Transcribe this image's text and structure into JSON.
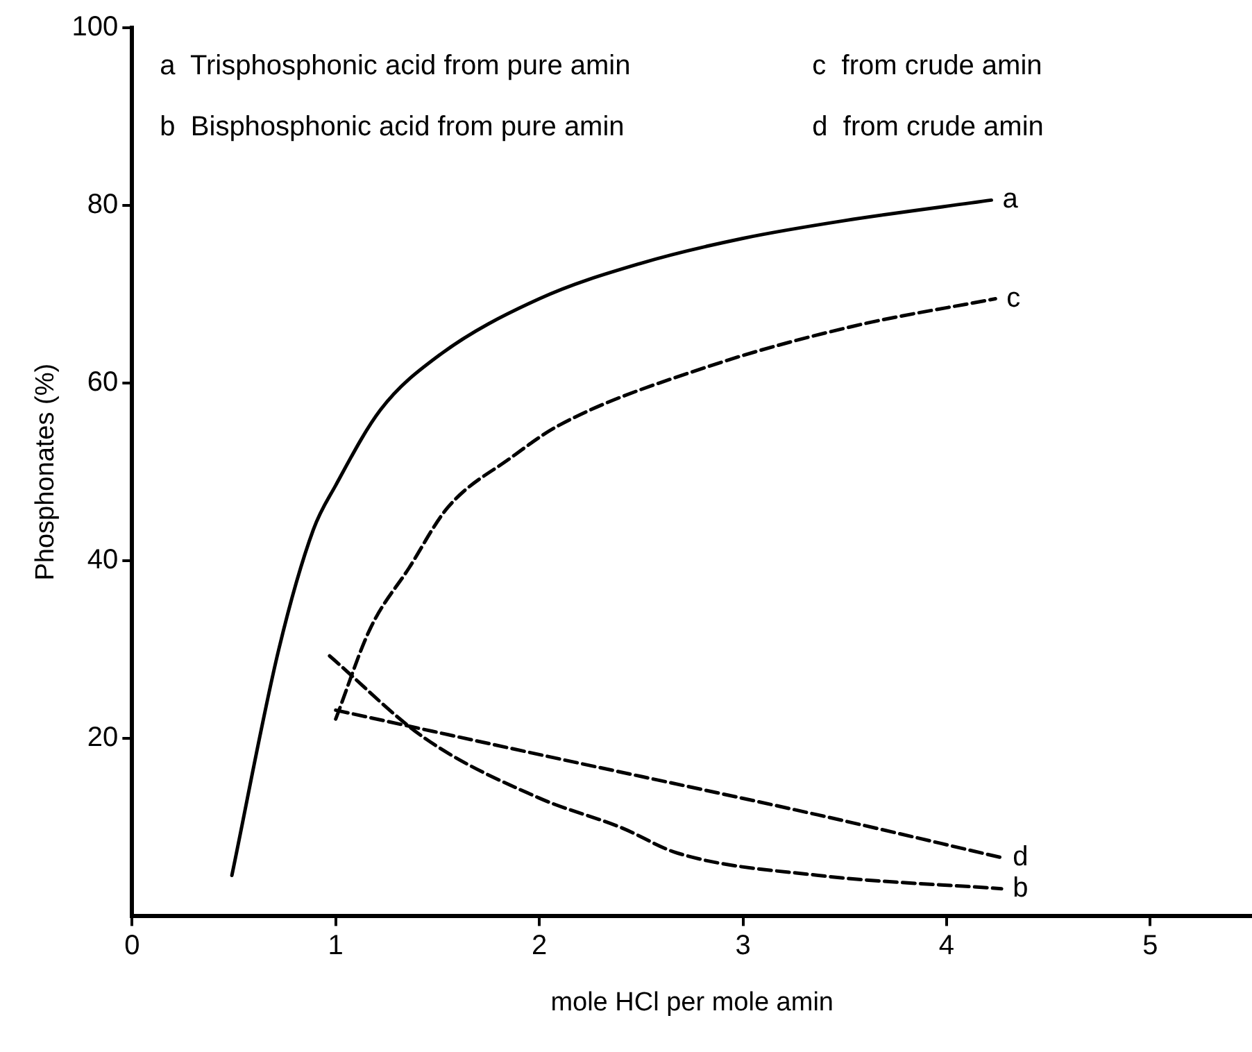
{
  "chart_data": {
    "type": "line",
    "xlabel": "mole HCl per mole amin",
    "ylabel": "Phosphonates (%)",
    "annotations": [
      "a  Trisphosphonic acid from pure amin",
      "b  Bisphosphonic acid from pure amin",
      "c  from crude amin",
      "d  from crude amin"
    ],
    "xlim": [
      0,
      5.5
    ],
    "xticks": [
      0,
      1,
      2,
      3,
      4,
      5
    ],
    "ylim": [
      0,
      100
    ],
    "yticks": [
      20,
      40,
      60,
      80,
      100
    ],
    "grid": false,
    "legend": false,
    "marker": "none",
    "series": [
      {
        "name": "a",
        "color": "#000000",
        "line_style": "solid",
        "x": [
          0.49,
          0.72,
          0.89,
          1.0,
          1.22,
          1.5,
          2.0,
          2.5,
          3.0,
          3.5,
          4.22
        ],
        "values": [
          4.6,
          30,
          43.5,
          48.5,
          57,
          63,
          69.5,
          73.5,
          76.3,
          78.3,
          80.6
        ]
      },
      {
        "name": "c",
        "color": "#000000",
        "line_style": "dashed",
        "x": [
          1.0,
          1.17,
          1.36,
          1.55,
          1.86,
          2.1,
          2.82,
          3.54,
          4.24
        ],
        "values": [
          22.2,
          32.4,
          39.2,
          46,
          51.6,
          55.3,
          61.8,
          66.4,
          69.5
        ]
      },
      {
        "name": "b",
        "color": "#000000",
        "line_style": "dashed",
        "x": [
          0.97,
          1.44,
          2.0,
          2.4,
          2.68,
          3.37,
          4.27
        ],
        "values": [
          29.3,
          20,
          13.3,
          10,
          7.1,
          4.6,
          3.1
        ]
      },
      {
        "name": "d",
        "color": "#000000",
        "line_style": "dashed",
        "x": [
          1.0,
          2.0,
          3.37,
          4.27
        ],
        "values": [
          23.2,
          18.2,
          11.4,
          6.6
        ]
      }
    ]
  }
}
